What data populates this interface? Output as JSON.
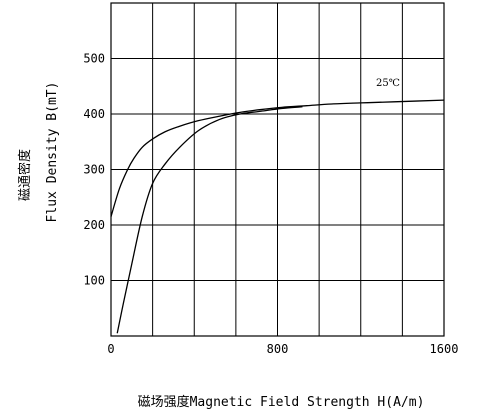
{
  "chart_data": {
    "type": "line",
    "xlabel": "磁场强度Magnetic Field Strength H(A/m)",
    "ylabel_cn": "磁通密度",
    "ylabel_en": "Flux Density B(mT)",
    "annotation": "25℃",
    "xlim": [
      0,
      1600
    ],
    "ylim": [
      0,
      600
    ],
    "x_ticks": [
      0,
      800,
      1600
    ],
    "x_tick_labels": [
      "0",
      "800",
      "1600"
    ],
    "y_ticks": [
      100,
      200,
      300,
      400,
      500
    ],
    "y_tick_labels": [
      "100",
      "200",
      "300",
      "400",
      "500"
    ],
    "grid": true,
    "series": [
      {
        "x": [
          0,
          40,
          80,
          110,
          150,
          200,
          260,
          330,
          420,
          520,
          620,
          720,
          820,
          940,
          1060,
          1200,
          1360,
          1600
        ],
        "values": [
          215,
          265,
          300,
          320,
          340,
          355,
          368,
          378,
          388,
          396,
          403,
          408,
          412,
          415,
          418,
          420,
          422,
          425
        ]
      },
      {
        "x": [
          30,
          60,
          100,
          150,
          200,
          260,
          330,
          420,
          520,
          620,
          720,
          820,
          920
        ],
        "values": [
          5,
          60,
          130,
          215,
          275,
          310,
          340,
          370,
          390,
          400,
          405,
          410,
          413
        ]
      }
    ]
  }
}
